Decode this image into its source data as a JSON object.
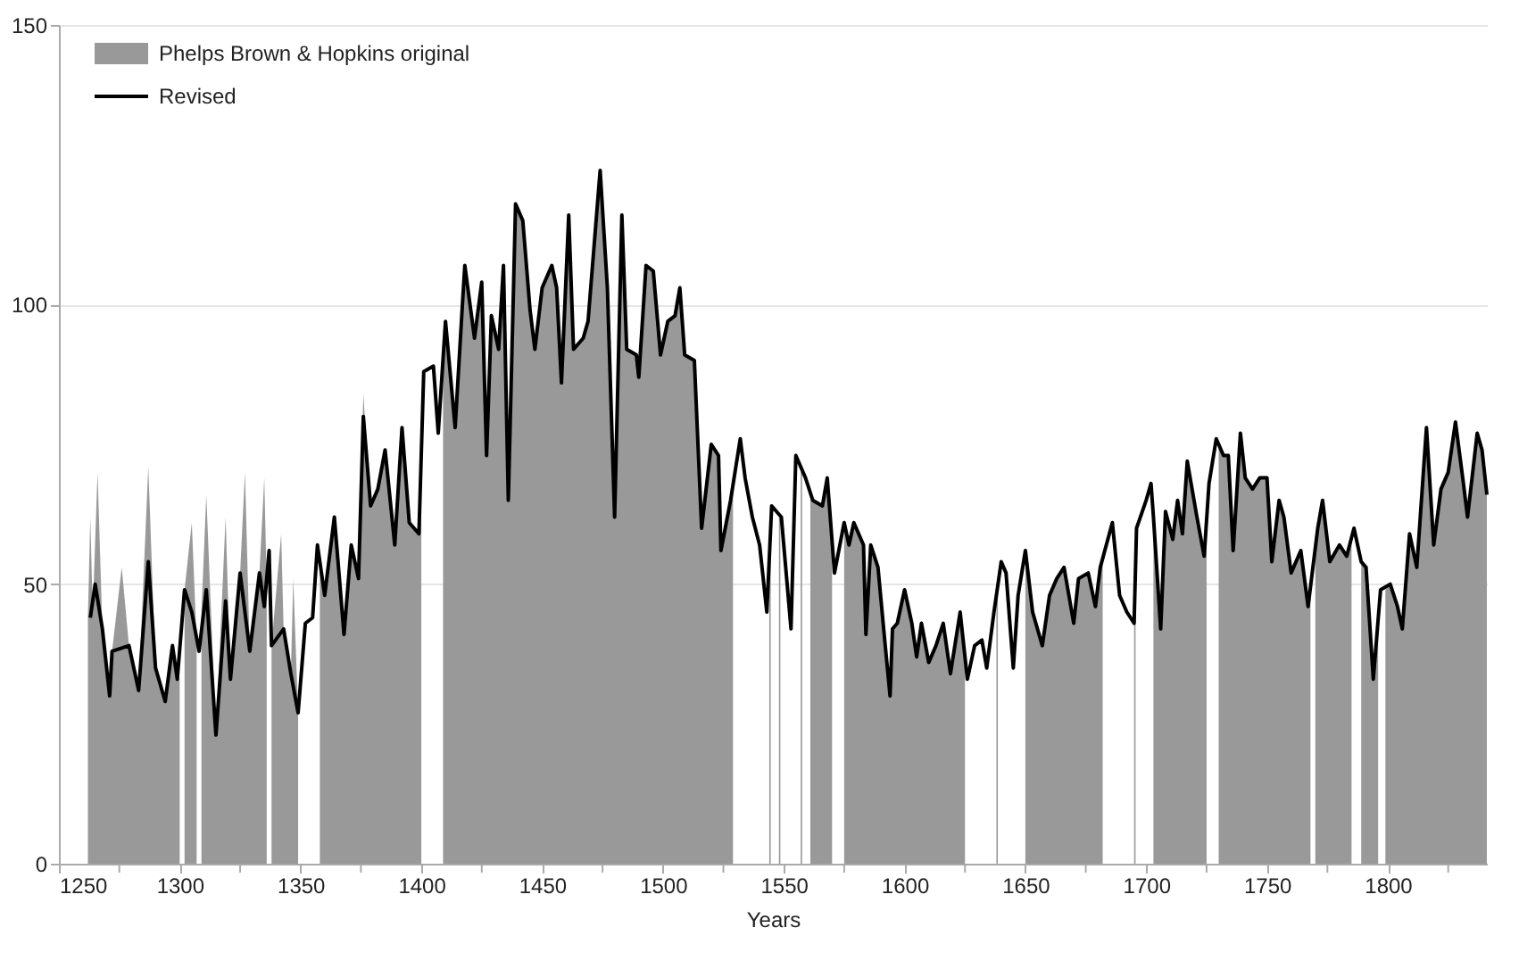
{
  "chart_data": {
    "type": "area",
    "xlabel": "Years",
    "xlim": [
      1250,
      1841
    ],
    "ylim": [
      0,
      150
    ],
    "xticks": [
      1250,
      {
        "value": 1275,
        "label": null
      },
      1300,
      {
        "value": 1325,
        "label": null
      },
      1350,
      {
        "value": 1375,
        "label": null
      },
      1400,
      {
        "value": 1425,
        "label": null
      },
      1450,
      {
        "value": 1475,
        "label": null
      },
      1500,
      {
        "value": 1525,
        "label": null
      },
      1550,
      {
        "value": 1575,
        "label": null
      },
      1600,
      {
        "value": 1625,
        "label": null
      },
      1650,
      {
        "value": 1675,
        "label": null
      },
      1700,
      {
        "value": 1725,
        "label": null
      },
      1750,
      {
        "value": 1775,
        "label": null
      },
      1800,
      {
        "value": 1825,
        "label": null
      }
    ],
    "yticks": [
      0,
      50,
      100,
      150
    ],
    "grid": "y",
    "legend": "top left",
    "series": [
      {
        "name": "Phelps Brown & Hopkins original",
        "color": "#999999",
        "x": [
          1262,
          1263,
          1264,
          1266,
          1268,
          1271,
          1272,
          1276,
          1279,
          1283,
          1287,
          1290,
          1294,
          1297,
          1300,
          1301,
          1302,
          1305,
          1307,
          1308,
          1309,
          1311,
          1315,
          1319,
          1321,
          1325,
          1327,
          1329,
          1333,
          1335,
          1336,
          1337,
          1338,
          1342,
          1343,
          1346,
          1347,
          1349,
          1353,
          1358,
          1360,
          1364,
          1368,
          1371,
          1374,
          1376,
          1379,
          1382,
          1385,
          1389,
          1392,
          1395,
          1399,
          1400,
          1405,
          1409,
          1410,
          1414,
          1417,
          1418,
          1422,
          1425,
          1427,
          1429,
          1432,
          1434,
          1436,
          1439,
          1442,
          1445,
          1447,
          1450,
          1454,
          1456,
          1458,
          1461,
          1463,
          1467,
          1469,
          1474,
          1477,
          1480,
          1483,
          1485,
          1489,
          1490,
          1493,
          1496,
          1499,
          1502,
          1505,
          1507,
          1509,
          1513,
          1516,
          1520,
          1523,
          1524,
          1528,
          1529,
          1536,
          1544,
          1544.6,
          1546,
          1548,
          1548.6,
          1551,
          1557,
          1557.6,
          1559.5,
          1561,
          1562,
          1566,
          1568,
          1570,
          1572,
          1575,
          1577,
          1579,
          1583,
          1584,
          1586,
          1589,
          1592,
          1594,
          1595,
          1597,
          1600,
          1603,
          1605,
          1607,
          1610,
          1613,
          1616,
          1619,
          1623,
          1625,
          1630,
          1638,
          1638.6,
          1645,
          1650,
          1653,
          1657,
          1660,
          1663,
          1666,
          1670,
          1672,
          1676,
          1679,
          1681,
          1682,
          1688,
          1695,
          1695.6,
          1699,
          1703,
          1706,
          1708,
          1711,
          1713,
          1715,
          1717,
          1721,
          1724,
          1725,
          1727,
          1730,
          1732,
          1734,
          1736,
          1739,
          1741,
          1744,
          1747,
          1750,
          1752,
          1755,
          1757,
          1760,
          1764,
          1767,
          1768,
          1769,
          1770,
          1771,
          1773,
          1776,
          1780,
          1783,
          1785,
          1787,
          1789,
          1791,
          1794,
          1796,
          1798,
          1799,
          1801,
          1804,
          1806,
          1809,
          1812,
          1816,
          1819,
          1822,
          1825,
          1828,
          1831,
          1833,
          1837,
          1839,
          1841
        ],
        "values": [
          44,
          62,
          45,
          70,
          42,
          30,
          38,
          53,
          39,
          31,
          71,
          35,
          29,
          39,
          33,
          null,
          49,
          61,
          40,
          null,
          45,
          66,
          23,
          62,
          33,
          52,
          70,
          38,
          52,
          69,
          50,
          null,
          39,
          59,
          42,
          34,
          51,
          27,
          null,
          55,
          48,
          62,
          41,
          57,
          51,
          84,
          64,
          67,
          74,
          57,
          78,
          61,
          59,
          62,
          null,
          90,
          97,
          78,
          100,
          107,
          94,
          104,
          73,
          98,
          92,
          107,
          65,
          118,
          115,
          99,
          92,
          103,
          107,
          103,
          86,
          116,
          92,
          94,
          97,
          124,
          103,
          62,
          116,
          92,
          91,
          87,
          107,
          106,
          91,
          97,
          98,
          103,
          91,
          90,
          60,
          75,
          73,
          56,
          65,
          70,
          null,
          55,
          60,
          null,
          62,
          62,
          null,
          70,
          70,
          null,
          66,
          65,
          64,
          69,
          55,
          null,
          61,
          57,
          61,
          57,
          41,
          57,
          53,
          39,
          30,
          42,
          43,
          49,
          43,
          37,
          43,
          36,
          39,
          43,
          34,
          45,
          38,
          null,
          48,
          50,
          null,
          56,
          45,
          39,
          48,
          51,
          53,
          43,
          51,
          52,
          46,
          53,
          55,
          null,
          43,
          50,
          null,
          62,
          42,
          63,
          58,
          65,
          59,
          72,
          62,
          55,
          60,
          null,
          75,
          73,
          73,
          56,
          77,
          69,
          67,
          69,
          69,
          54,
          65,
          62,
          52,
          56,
          46,
          50,
          null,
          55,
          60,
          65,
          54,
          57,
          55,
          58,
          null,
          54,
          53,
          33,
          45,
          null,
          49,
          50,
          46,
          42,
          59,
          53,
          78,
          57,
          67,
          70,
          79,
          69,
          62,
          77,
          74,
          66
        ]
      },
      {
        "name": "Revised",
        "type": "line",
        "color": "#000000",
        "x": [
          1263,
          1265,
          1268,
          1271,
          1272,
          1279,
          1283,
          1287,
          1290,
          1294,
          1297,
          1299,
          1302,
          1305,
          1308,
          1311,
          1315,
          1319,
          1321,
          1325,
          1329,
          1333,
          1335,
          1337,
          1338,
          1343,
          1346,
          1349,
          1352,
          1355,
          1357,
          1360,
          1364,
          1368,
          1371,
          1374,
          1376,
          1379,
          1382,
          1385,
          1389,
          1392,
          1395,
          1399,
          1401,
          1405,
          1407,
          1410,
          1414,
          1417,
          1418,
          1422,
          1425,
          1427,
          1429,
          1432,
          1434,
          1436,
          1439,
          1442,
          1445,
          1447,
          1450,
          1454,
          1456,
          1458,
          1461,
          1463,
          1467,
          1469,
          1474,
          1477,
          1480,
          1483,
          1485,
          1489,
          1490,
          1493,
          1496,
          1499,
          1502,
          1505,
          1507,
          1509,
          1513,
          1516,
          1520,
          1523,
          1524,
          1528,
          1532,
          1534,
          1537,
          1540,
          1543,
          1545,
          1549,
          1553,
          1555,
          1559,
          1562,
          1566,
          1568,
          1571,
          1575,
          1577,
          1579,
          1583,
          1584,
          1586,
          1589,
          1592,
          1594,
          1595,
          1597,
          1600,
          1603,
          1605,
          1607,
          1610,
          1613,
          1616,
          1619,
          1623,
          1626,
          1629,
          1632,
          1634,
          1637,
          1640,
          1642,
          1645,
          1647,
          1650,
          1653,
          1657,
          1660,
          1663,
          1666,
          1670,
          1672,
          1676,
          1679,
          1681,
          1686,
          1689,
          1692,
          1695,
          1696,
          1700,
          1702,
          1703,
          1706,
          1708,
          1711,
          1713,
          1715,
          1717,
          1721,
          1724,
          1726,
          1729,
          1732,
          1734,
          1736,
          1739,
          1741,
          1744,
          1747,
          1750,
          1752,
          1755,
          1757,
          1760,
          1764,
          1767,
          1771,
          1773,
          1776,
          1780,
          1783,
          1786,
          1789,
          1791,
          1794,
          1797,
          1801,
          1804,
          1806,
          1809,
          1812,
          1816,
          1819,
          1822,
          1825,
          1828,
          1831,
          1833,
          1837,
          1839,
          1841
        ],
        "values": [
          44,
          50,
          42,
          30,
          38,
          39,
          31,
          54,
          35,
          29,
          39,
          33,
          49,
          45,
          38,
          49,
          23,
          47,
          33,
          52,
          38,
          52,
          46,
          56,
          39,
          42,
          34,
          27,
          43,
          44,
          57,
          48,
          62,
          41,
          57,
          51,
          80,
          64,
          67,
          74,
          57,
          78,
          61,
          59,
          88,
          89,
          77,
          97,
          78,
          100,
          107,
          94,
          104,
          73,
          98,
          92,
          107,
          65,
          118,
          115,
          99,
          92,
          103,
          107,
          103,
          86,
          116,
          92,
          94,
          97,
          124,
          103,
          62,
          116,
          92,
          91,
          87,
          107,
          106,
          91,
          97,
          98,
          103,
          91,
          90,
          60,
          75,
          73,
          56,
          65,
          76,
          69,
          62,
          57,
          45,
          64,
          62,
          42,
          73,
          69,
          65,
          64,
          69,
          52,
          61,
          57,
          61,
          57,
          41,
          57,
          53,
          39,
          30,
          42,
          43,
          49,
          43,
          37,
          43,
          36,
          39,
          43,
          34,
          45,
          33,
          39,
          40,
          35,
          45,
          54,
          52,
          35,
          48,
          56,
          45,
          39,
          48,
          51,
          53,
          43,
          51,
          52,
          46,
          53,
          61,
          48,
          45,
          43,
          60,
          65,
          68,
          62,
          42,
          63,
          58,
          65,
          59,
          72,
          62,
          55,
          68,
          76,
          73,
          73,
          56,
          77,
          69,
          67,
          69,
          69,
          54,
          65,
          62,
          52,
          56,
          46,
          60,
          65,
          54,
          57,
          55,
          60,
          54,
          53,
          33,
          49,
          50,
          46,
          42,
          59,
          53,
          78,
          57,
          67,
          70,
          79,
          69,
          62,
          77,
          74,
          66
        ]
      }
    ]
  }
}
